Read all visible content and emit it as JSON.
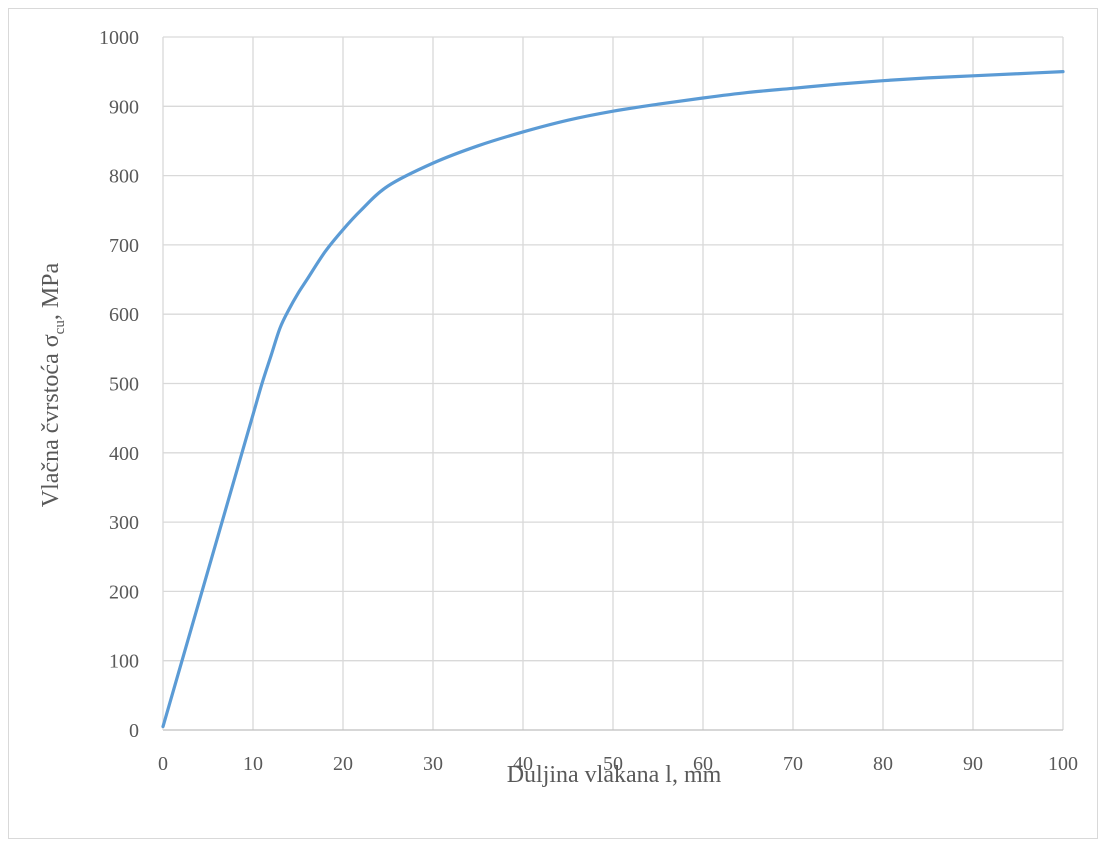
{
  "chart_data": {
    "type": "line",
    "title": "",
    "xlabel": "Duljina vlakana l, mm",
    "ylabel_main": "Vlačna čvrstoća σ",
    "ylabel_sub": "cu",
    "ylabel_suffix": ", MPa",
    "xlim": [
      0,
      100
    ],
    "ylim": [
      0,
      1000
    ],
    "x_ticks": [
      "0",
      "10",
      "20",
      "30",
      "40",
      "50",
      "60",
      "70",
      "80",
      "90",
      "100"
    ],
    "y_ticks": [
      "0",
      "100",
      "200",
      "300",
      "400",
      "500",
      "600",
      "700",
      "800",
      "900",
      "1000"
    ],
    "grid": true,
    "legend": "none",
    "series": [
      {
        "color": "#5b9bd5",
        "x": [
          0,
          2,
          4,
          6,
          8,
          10,
          11,
          12,
          13,
          14,
          15,
          16,
          18,
          20,
          22,
          25,
          30,
          35,
          40,
          45,
          50,
          55,
          60,
          65,
          70,
          75,
          80,
          85,
          90,
          95,
          100
        ],
        "y": [
          5,
          95,
          185,
          275,
          365,
          455,
          500,
          540,
          580,
          607,
          630,
          650,
          690,
          722,
          750,
          785,
          818,
          843,
          863,
          880,
          893,
          903,
          912,
          920,
          926,
          932,
          937,
          941,
          944,
          947,
          950
        ]
      }
    ]
  }
}
